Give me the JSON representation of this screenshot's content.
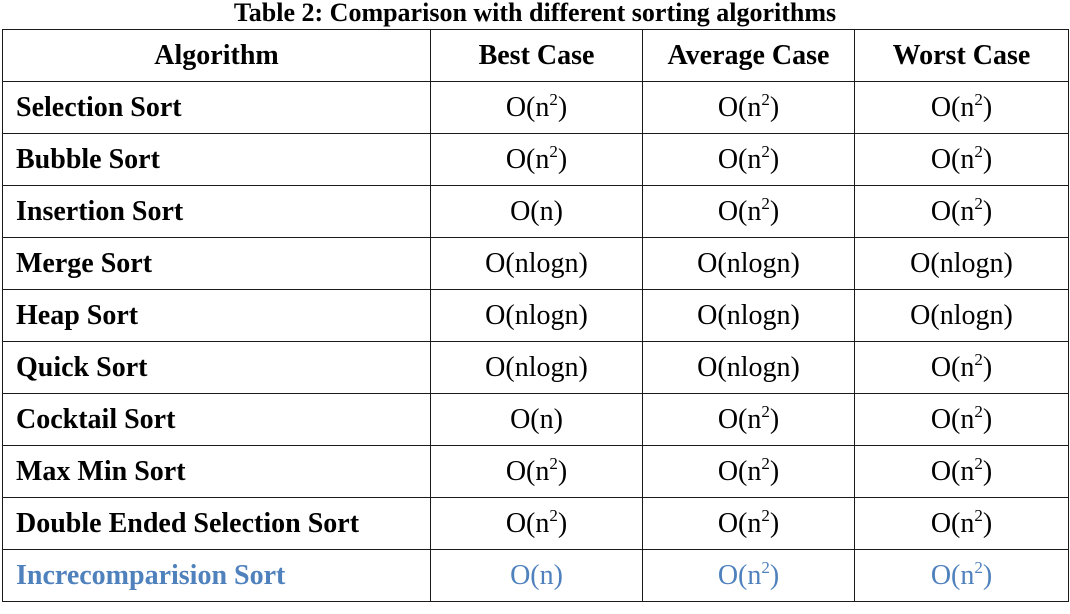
{
  "caption": "Table 2: Comparison with different sorting algorithms",
  "colors": {
    "text": "#000000",
    "border": "#1a1a1a",
    "highlight_row_text": "#4f81bd"
  },
  "table": {
    "headers": [
      "Algorithm",
      "Best Case",
      "Average Case",
      "Worst Case"
    ],
    "rows": [
      {
        "algorithm": "Selection Sort",
        "best": {
          "base": "O(n",
          "exp": "2",
          "tail": ")"
        },
        "average": {
          "base": "O(n",
          "exp": "2",
          "tail": ")"
        },
        "worst": {
          "base": "O(n",
          "exp": "2",
          "tail": ")"
        }
      },
      {
        "algorithm": "Bubble Sort",
        "best": {
          "base": "O(n",
          "exp": "2",
          "tail": ")"
        },
        "average": {
          "base": "O(n",
          "exp": "2",
          "tail": ")"
        },
        "worst": {
          "base": "O(n",
          "exp": "2",
          "tail": ")"
        }
      },
      {
        "algorithm": "Insertion Sort",
        "best": {
          "base": "O(n)"
        },
        "average": {
          "base": "O(n",
          "exp": "2",
          "tail": ")"
        },
        "worst": {
          "base": "O(n",
          "exp": "2",
          "tail": ")"
        }
      },
      {
        "algorithm": "Merge Sort",
        "best": {
          "base": "O(nlogn)"
        },
        "average": {
          "base": "O(nlogn)"
        },
        "worst": {
          "base": "O(nlogn)"
        }
      },
      {
        "algorithm": "Heap Sort",
        "best": {
          "base": "O(nlogn)"
        },
        "average": {
          "base": "O(nlogn)"
        },
        "worst": {
          "base": "O(nlogn)"
        }
      },
      {
        "algorithm": "Quick Sort",
        "best": {
          "base": "O(nlogn)"
        },
        "average": {
          "base": "O(nlogn)"
        },
        "worst": {
          "base": "O(n",
          "exp": "2",
          "tail": ")"
        }
      },
      {
        "algorithm": "Cocktail Sort",
        "best": {
          "base": "O(n)"
        },
        "average": {
          "base": "O(n",
          "exp": "2",
          "tail": ")"
        },
        "worst": {
          "base": "O(n",
          "exp": "2",
          "tail": ")"
        }
      },
      {
        "algorithm": "Max Min Sort",
        "best": {
          "base": "O(n",
          "exp": "2",
          "tail": ")"
        },
        "average": {
          "base": "O(n",
          "exp": "2",
          "tail": ")"
        },
        "worst": {
          "base": "O(n",
          "exp": "2",
          "tail": ")"
        }
      },
      {
        "algorithm": "Double Ended Selection Sort",
        "best": {
          "base": "O(n",
          "exp": "2",
          "tail": ")"
        },
        "average": {
          "base": "O(n",
          "exp": "2",
          "tail": ")"
        },
        "worst": {
          "base": "O(n",
          "exp": "2",
          "tail": ")"
        }
      },
      {
        "algorithm": "Increcomparision Sort",
        "highlight": true,
        "best": {
          "base": "O(n)"
        },
        "average": {
          "base": "O(n",
          "exp": "2",
          "tail": ")"
        },
        "worst": {
          "base": "O(n",
          "exp": "2",
          "tail": ")"
        }
      }
    ]
  }
}
